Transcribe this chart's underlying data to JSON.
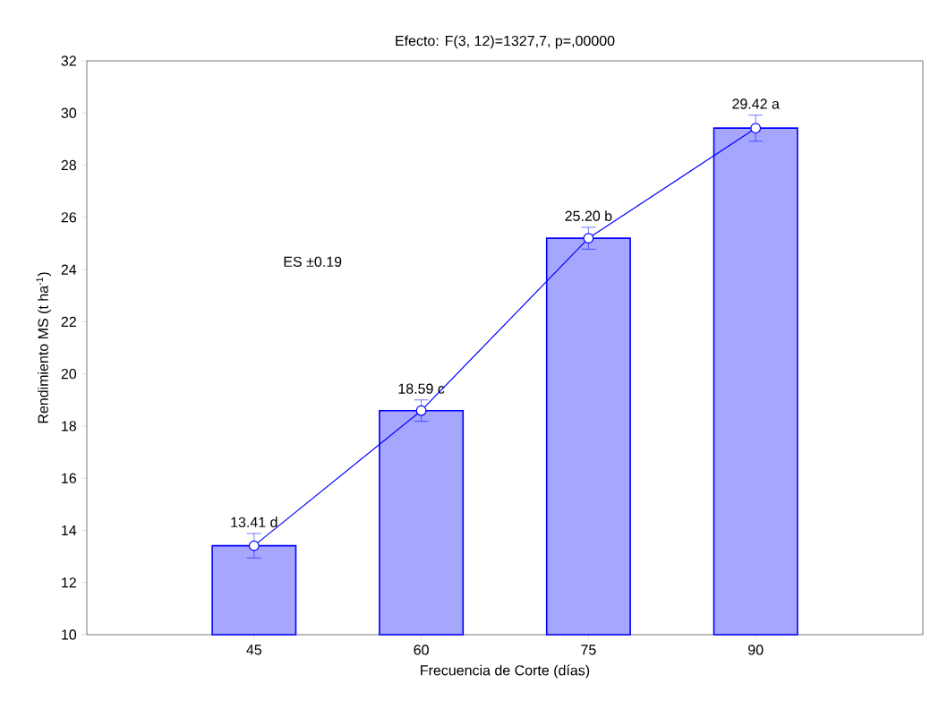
{
  "chart_data": {
    "type": "bar",
    "title": "Efecto: F(3, 12)=1327,7, p=,00000",
    "xlabel": "Frecuencia de Corte (días)",
    "ylabel": "Rendimiento MS (t ha$^{-1}$)",
    "categories": [
      "45",
      "60",
      "75",
      "90"
    ],
    "series": [
      {
        "type": "bar",
        "color": "#0000ff",
        "values": [
          13.41,
          18.59,
          25.2,
          29.42
        ]
      },
      {
        "type": "line",
        "color": "#0000ff",
        "marker": "circle",
        "values": [
          13.41,
          18.59,
          25.2,
          29.42
        ],
        "errors": [
          0.47,
          0.41,
          0.42,
          0.5
        ],
        "value_labels": [
          "13.41 d",
          "18.59 c",
          "25.20 b",
          "29.42 a"
        ]
      }
    ],
    "ylim": [
      10,
      32
    ],
    "yticks": [
      10,
      12,
      14,
      16,
      18,
      20,
      22,
      24,
      26,
      28,
      30,
      32
    ],
    "grid": false,
    "annotations": [
      "ES ±0.19"
    ]
  }
}
